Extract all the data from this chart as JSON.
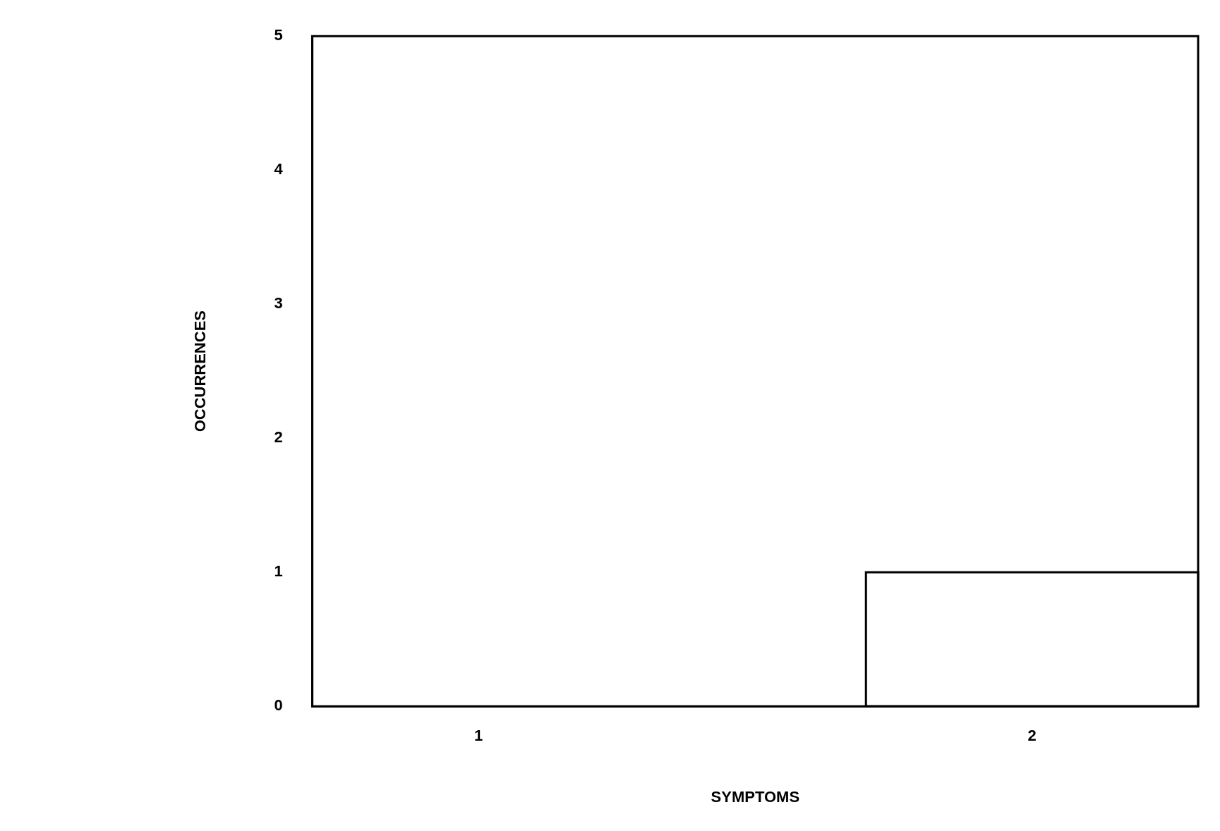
{
  "chart_data": {
    "type": "histogram",
    "xlabel": "SYMPTOMS",
    "ylabel": "OCCURRENCES",
    "bins": [
      1.7,
      2.3
    ],
    "values": [
      1
    ],
    "color": "#000000",
    "xlim": [
      0.7,
      2.3
    ],
    "xticks": [
      1,
      2
    ],
    "ylim": [
      0,
      5
    ],
    "yticks": [
      0,
      1,
      2,
      3,
      4,
      5
    ],
    "grid": false,
    "legend": false
  }
}
